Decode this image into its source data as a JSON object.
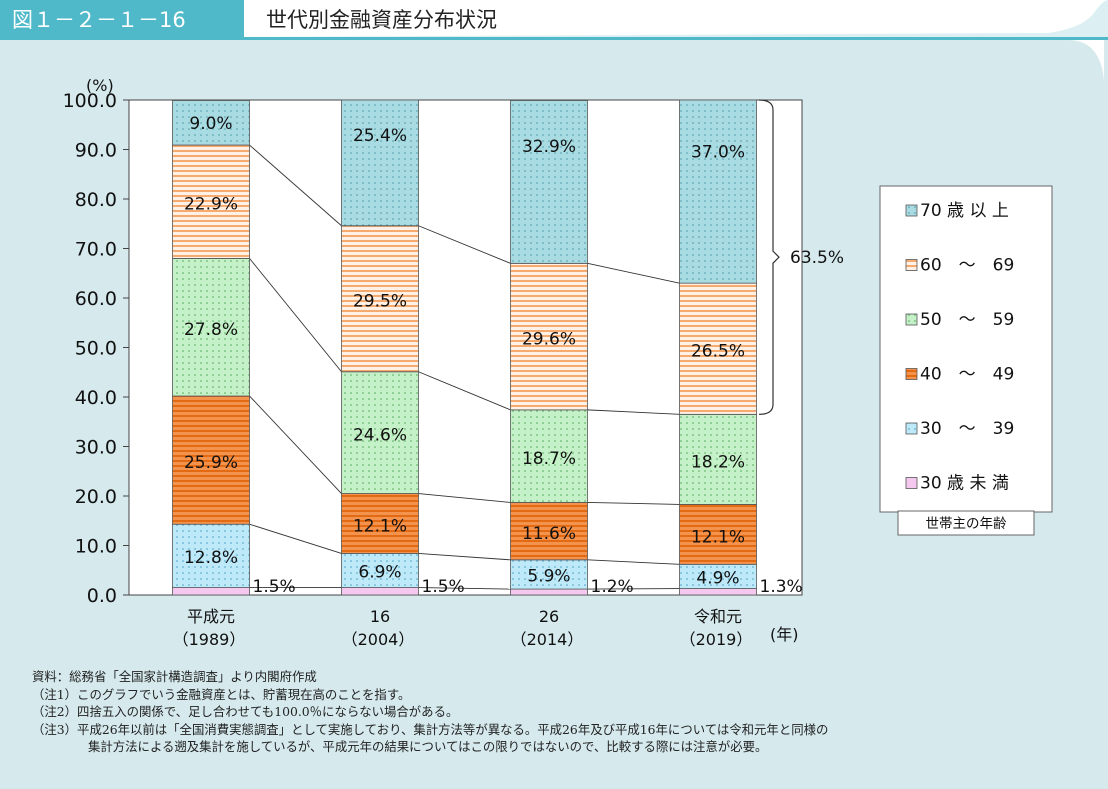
{
  "header": {
    "figure_label": "図１－２－１－16",
    "title": "世代別金融資産分布状況"
  },
  "colors": {
    "header_tab": "#4fb9c9",
    "panel_bg": "#d6eaee",
    "age70": "#a9dbe3",
    "age60": "#ffd8bd",
    "age50": "#c4f1c7",
    "age40": "#f4934e",
    "age30": "#bde9f9",
    "age_under30": "#f5c8ef"
  },
  "chart_data": {
    "type": "bar",
    "stacked": true,
    "y_unit_label": "(%)",
    "x_unit_label": "(年)",
    "ylim": [
      0,
      100
    ],
    "yticks": [
      "0.0",
      "10.0",
      "20.0",
      "30.0",
      "40.0",
      "50.0",
      "60.0",
      "70.0",
      "80.0",
      "90.0",
      "100.0"
    ],
    "grid": false,
    "legend_position": "right",
    "legend_title": "世帯主の年齢",
    "categories": [
      {
        "line1": "平成元",
        "line2": "（1989）"
      },
      {
        "line1": "16",
        "line2": "（2004）"
      },
      {
        "line1": "26",
        "line2": "（2014）"
      },
      {
        "line1": "令和元",
        "line2": "（2019）"
      }
    ],
    "series": [
      {
        "name": "30 歳 未 満",
        "values": [
          1.5,
          1.5,
          1.2,
          1.3
        ],
        "labels": [
          "1.5%",
          "1.5%",
          "1.2%",
          "1.3%"
        ]
      },
      {
        "name": "30　～　39",
        "values": [
          12.8,
          6.9,
          5.9,
          4.9
        ],
        "labels": [
          "12.8%",
          "6.9%",
          "5.9%",
          "4.9%"
        ]
      },
      {
        "name": "40　～　49",
        "values": [
          25.9,
          12.1,
          11.6,
          12.1
        ],
        "labels": [
          "25.9%",
          "12.1%",
          "11.6%",
          "12.1%"
        ]
      },
      {
        "name": "50　～　59",
        "values": [
          27.8,
          24.6,
          18.7,
          18.2
        ],
        "labels": [
          "27.8%",
          "24.6%",
          "18.7%",
          "18.2%"
        ]
      },
      {
        "name": "60　～　69",
        "values": [
          22.9,
          29.5,
          29.6,
          26.5
        ],
        "labels": [
          "22.9%",
          "29.5%",
          "29.6%",
          "26.5%"
        ]
      },
      {
        "name": "70 歳 以 上",
        "values": [
          9.0,
          25.4,
          32.9,
          37.0
        ],
        "labels": [
          "9.0%",
          "25.4%",
          "32.9%",
          "37.0%"
        ]
      }
    ],
    "annotation": {
      "text": "63.5%",
      "category_index": 3,
      "from_series": 4,
      "to_series": 5
    }
  },
  "notes": [
    "資料：総務省「全国家計構造調査」より内閣府作成",
    "（注1）このグラフでいう金融資産とは、貯蓄現在高のことを指す。",
    "（注2）四捨五入の関係で、足し合わせても100.0％にならない場合がある。",
    "（注3）平成26年以前は「全国消費実態調査」として実施しており、集計方法等が異なる。平成26年及び平成16年については令和元年と同様の",
    "集計方法による遡及集計を施しているが、平成元年の結果についてはこの限りではないので、比較する際には注意が必要。"
  ]
}
